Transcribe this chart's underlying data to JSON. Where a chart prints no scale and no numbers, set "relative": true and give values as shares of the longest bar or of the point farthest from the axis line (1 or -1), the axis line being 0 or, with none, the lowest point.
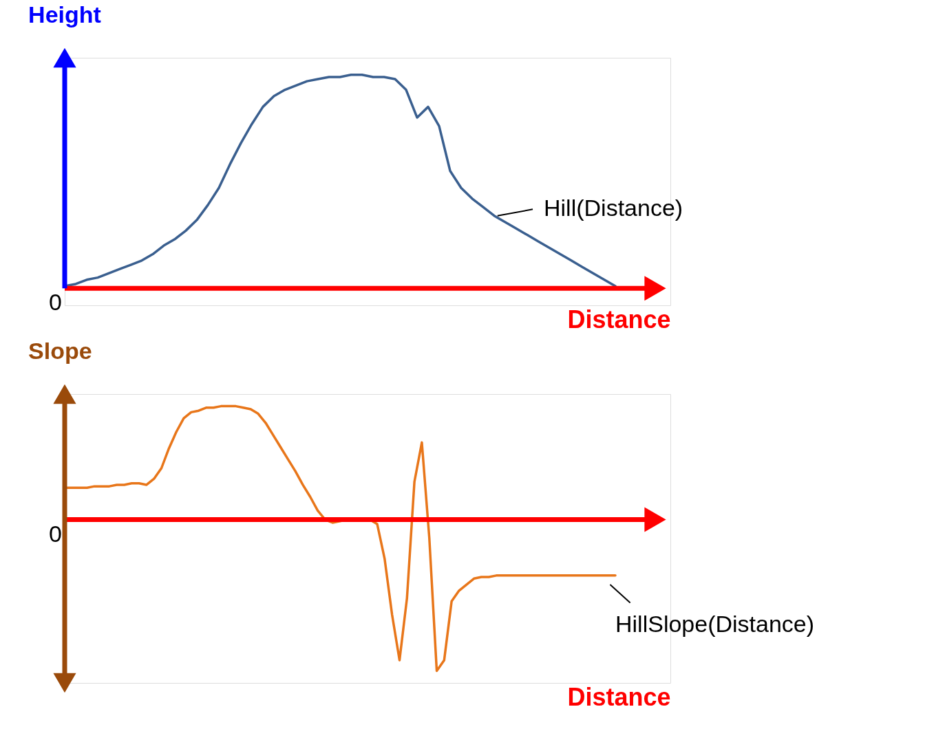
{
  "chart_data": [
    {
      "type": "line",
      "relative": true,
      "ylabel": "Height",
      "xlabel": "Distance",
      "annotations": [
        "0"
      ],
      "ref_lines": [
        {
          "axis": "y",
          "value": 0,
          "color": "#ff0000"
        }
      ],
      "categories": [
        null,
        null,
        null,
        null,
        null,
        null,
        null,
        null,
        null,
        null,
        null,
        null,
        null,
        null,
        null,
        null,
        null,
        null,
        null,
        null,
        null,
        null,
        null,
        null,
        null,
        null,
        null,
        null,
        null,
        null,
        null,
        null,
        null,
        null,
        null,
        null,
        null,
        null,
        null,
        null,
        null,
        null,
        null,
        null,
        null,
        null,
        null,
        null,
        null,
        null,
        null
      ],
      "series": [
        {
          "name": "Hill(Distance)",
          "color": "#3a5f8f",
          "values": [
            0.01,
            0.02,
            0.04,
            0.05,
            0.07,
            0.09,
            0.11,
            0.13,
            0.16,
            0.2,
            0.23,
            0.27,
            0.32,
            0.39,
            0.47,
            0.58,
            0.68,
            0.77,
            0.85,
            0.9,
            0.93,
            0.95,
            0.97,
            0.98,
            0.99,
            0.99,
            1,
            1,
            0.99,
            0.99,
            0.98,
            0.93,
            0.8,
            0.85,
            0.76,
            0.55,
            0.47,
            0.42,
            0.38,
            0.34,
            0.31,
            0.28,
            0.25,
            0.22,
            0.19,
            0.16,
            0.13,
            0.1,
            0.07,
            0.04,
            0.01
          ]
        }
      ]
    },
    {
      "type": "line",
      "relative": true,
      "ylabel": "Slope",
      "xlabel": "Distance",
      "annotations": [
        "0"
      ],
      "ref_lines": [
        {
          "axis": "y",
          "value": 0,
          "color": "#ff0000"
        }
      ],
      "categories": [
        null,
        null,
        null,
        null,
        null,
        null,
        null,
        null,
        null,
        null,
        null,
        null,
        null,
        null,
        null,
        null,
        null,
        null,
        null,
        null,
        null,
        null,
        null,
        null,
        null,
        null,
        null,
        null,
        null,
        null,
        null,
        null,
        null,
        null,
        null,
        null,
        null,
        null,
        null,
        null,
        null,
        null,
        null,
        null,
        null,
        null,
        null,
        null,
        null,
        null,
        null,
        null,
        null,
        null,
        null,
        null,
        null,
        null,
        null,
        null,
        null,
        null,
        null,
        null,
        null,
        null,
        null,
        null,
        null,
        null,
        null,
        null,
        null,
        null,
        null
      ],
      "series": [
        {
          "name": "HillSlope(Distance)",
          "color": "#e8761a",
          "values": [
            0.21,
            0.21,
            0.21,
            0.21,
            0.22,
            0.22,
            0.22,
            0.23,
            0.23,
            0.24,
            0.24,
            0.23,
            0.27,
            0.34,
            0.47,
            0.58,
            0.67,
            0.71,
            0.72,
            0.74,
            0.74,
            0.75,
            0.75,
            0.75,
            0.74,
            0.73,
            0.7,
            0.64,
            0.56,
            0.48,
            0.4,
            0.32,
            0.23,
            0.15,
            0.06,
            0,
            -0.02,
            -0.01,
            0,
            0,
            0,
            0,
            -0.03,
            -0.26,
            -0.63,
            -0.93,
            -0.52,
            0.25,
            0.51,
            -0.12,
            -1,
            -0.93,
            -0.54,
            -0.47,
            -0.43,
            -0.39,
            -0.38,
            -0.38,
            -0.37,
            -0.37,
            -0.37,
            -0.37,
            -0.37,
            -0.37,
            -0.37,
            -0.37,
            -0.37,
            -0.37,
            -0.37,
            -0.37,
            -0.37,
            -0.37,
            -0.37,
            -0.37,
            -0.37
          ]
        }
      ]
    }
  ]
}
